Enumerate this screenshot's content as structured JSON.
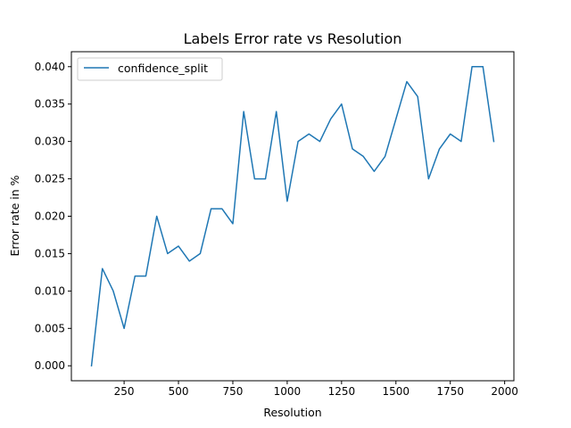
{
  "chart_data": {
    "type": "line",
    "title": "Labels Error rate vs Resolution",
    "xlabel": "Resolution",
    "ylabel": "Error rate in %",
    "xlim": [
      7.5,
      2042.5
    ],
    "ylim": [
      -0.002,
      0.042
    ],
    "xticks": [
      250,
      500,
      750,
      1000,
      1250,
      1500,
      1750,
      2000
    ],
    "xtick_labels": [
      "250",
      "500",
      "750",
      "1000",
      "1250",
      "1500",
      "1750",
      "2000"
    ],
    "yticks": [
      0.0,
      0.005,
      0.01,
      0.015,
      0.02,
      0.025,
      0.03,
      0.035,
      0.04
    ],
    "ytick_labels": [
      "0.000",
      "0.005",
      "0.010",
      "0.015",
      "0.020",
      "0.025",
      "0.030",
      "0.035",
      "0.040"
    ],
    "grid": false,
    "legend_position": "top-left",
    "series": [
      {
        "name": "confidence_split",
        "color": "#1f77b4",
        "x": [
          100,
          150,
          200,
          250,
          300,
          350,
          400,
          450,
          500,
          550,
          600,
          650,
          700,
          750,
          800,
          850,
          900,
          950,
          1000,
          1050,
          1100,
          1150,
          1200,
          1250,
          1300,
          1350,
          1400,
          1450,
          1500,
          1550,
          1600,
          1650,
          1700,
          1750,
          1800,
          1850,
          1900,
          1950
        ],
        "y": [
          0.0,
          0.013,
          0.01,
          0.005,
          0.012,
          0.012,
          0.02,
          0.015,
          0.016,
          0.014,
          0.015,
          0.021,
          0.021,
          0.019,
          0.034,
          0.025,
          0.025,
          0.034,
          0.022,
          0.03,
          0.031,
          0.03,
          0.033,
          0.035,
          0.029,
          0.028,
          0.026,
          0.028,
          0.033,
          0.038,
          0.036,
          0.025,
          0.029,
          0.031,
          0.03,
          0.04,
          0.04,
          0.03
        ]
      }
    ]
  }
}
